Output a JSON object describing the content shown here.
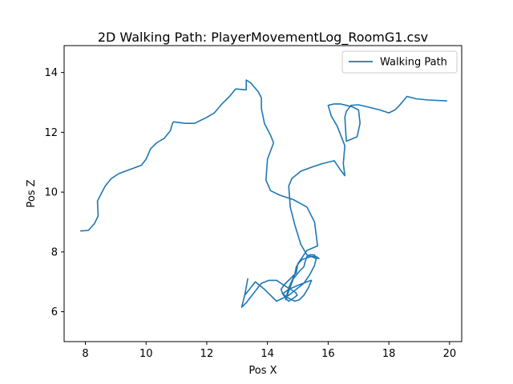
{
  "chart_data": {
    "type": "line",
    "title": "2D Walking Path: PlayerMovementLog_RoomG1.csv",
    "xlabel": "Pos X",
    "ylabel": "Pos Z",
    "xlim": [
      7.3,
      20.4
    ],
    "ylim": [
      5.0,
      14.9
    ],
    "xticks": [
      8,
      10,
      12,
      14,
      16,
      18,
      20
    ],
    "yticks": [
      6,
      8,
      10,
      12,
      14
    ],
    "grid": false,
    "legend_position": "top-right",
    "series": [
      {
        "name": "Walking Path",
        "color": "#1f77b4",
        "x": [
          7.85,
          8.1,
          8.3,
          8.42,
          8.4,
          8.5,
          8.65,
          8.85,
          9.1,
          9.45,
          9.85,
          10.0,
          10.15,
          10.35,
          10.6,
          10.8,
          10.87,
          10.9,
          11.3,
          11.6,
          11.8,
          12.0,
          12.25,
          12.5,
          12.75,
          12.95,
          13.3,
          13.3,
          13.45,
          13.7,
          13.8,
          13.8,
          13.9,
          14.1,
          14.2,
          14.0,
          13.95,
          14.1,
          14.4,
          14.85,
          15.3,
          15.55,
          15.65,
          15.3,
          15.0,
          14.95,
          14.55,
          14.45,
          14.5,
          14.7,
          14.9,
          15.05,
          15.2,
          15.35,
          15.45,
          15.3,
          15.05,
          14.7,
          14.5,
          14.6,
          14.7,
          14.85,
          14.98,
          14.92,
          14.6,
          14.3,
          14.05,
          13.8,
          13.3,
          13.15,
          13.25,
          13.35,
          13.25,
          13.6,
          13.9,
          14.3,
          14.7,
          14.95,
          15.2,
          15.4,
          15.55,
          15.6,
          15.55,
          15.4,
          15.3,
          15.25,
          15.2,
          15.15,
          15.05,
          14.85,
          14.6,
          14.7,
          14.9,
          14.95,
          15.05,
          15.15,
          15.3,
          15.45,
          15.6,
          15.7,
          15.55,
          15.3,
          15.1,
          14.9,
          14.75,
          14.7,
          14.8,
          15.1,
          15.5,
          15.8,
          16.2,
          16.4,
          16.55,
          16.5,
          16.55,
          16.3,
          16.1,
          16.0,
          16.2,
          16.4,
          16.6,
          16.8,
          17.0,
          17.05,
          16.95,
          16.6,
          16.55,
          16.6,
          16.75,
          17.0,
          17.3,
          17.7,
          18.0,
          18.2,
          18.35,
          18.6,
          18.9,
          19.3,
          19.9
        ],
        "y": [
          8.7,
          8.72,
          8.95,
          9.2,
          9.7,
          9.9,
          10.2,
          10.45,
          10.62,
          10.75,
          10.9,
          11.1,
          11.45,
          11.65,
          11.8,
          12.05,
          12.3,
          12.35,
          12.3,
          12.3,
          12.4,
          12.5,
          12.65,
          12.95,
          13.2,
          13.45,
          13.42,
          13.75,
          13.65,
          13.35,
          13.15,
          12.8,
          12.3,
          11.9,
          11.65,
          11.1,
          10.4,
          10.05,
          9.9,
          9.75,
          9.5,
          9.0,
          8.2,
          8.05,
          7.6,
          7.3,
          6.9,
          6.75,
          6.6,
          6.45,
          6.35,
          6.4,
          6.55,
          6.8,
          7.05,
          7.0,
          6.9,
          6.75,
          6.6,
          6.45,
          6.35,
          6.45,
          6.55,
          6.65,
          6.85,
          7.05,
          7.05,
          6.95,
          6.3,
          6.15,
          6.55,
          7.1,
          6.55,
          7.0,
          6.75,
          6.35,
          6.55,
          6.75,
          6.95,
          7.25,
          7.55,
          7.75,
          7.9,
          7.9,
          7.85,
          7.7,
          7.5,
          7.45,
          7.35,
          7.1,
          6.4,
          6.8,
          7.25,
          7.5,
          7.65,
          7.75,
          7.8,
          7.85,
          7.85,
          7.78,
          7.8,
          7.9,
          8.25,
          8.9,
          9.5,
          10.2,
          10.45,
          10.7,
          10.85,
          10.95,
          11.05,
          10.75,
          10.55,
          10.95,
          11.55,
          12.2,
          12.55,
          12.9,
          12.95,
          12.95,
          12.9,
          12.85,
          12.75,
          12.3,
          11.85,
          11.7,
          12.5,
          12.7,
          12.9,
          12.92,
          12.85,
          12.75,
          12.65,
          12.75,
          12.9,
          13.2,
          13.12,
          13.08,
          13.05
        ]
      }
    ]
  }
}
